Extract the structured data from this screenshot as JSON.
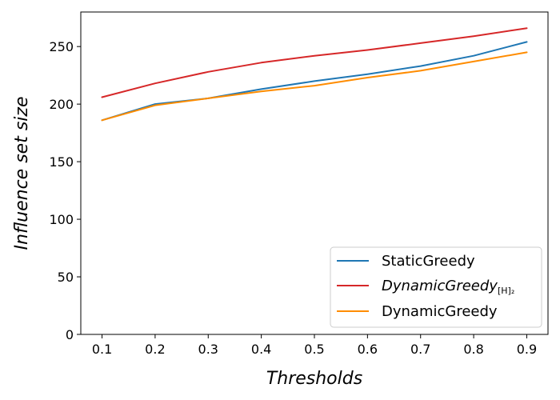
{
  "chart_data": {
    "type": "line",
    "title": "",
    "xlabel": "Thresholds",
    "ylabel": "Influence set size",
    "x": [
      0.1,
      0.2,
      0.3,
      0.4,
      0.5,
      0.6,
      0.7,
      0.8,
      0.9
    ],
    "x_tick_labels": [
      "0.1",
      "0.2",
      "0.3",
      "0.4",
      "0.5",
      "0.6",
      "0.7",
      "0.8",
      "0.9"
    ],
    "y_ticks": [
      0,
      50,
      100,
      150,
      200,
      250
    ],
    "y_tick_labels": [
      "0",
      "50",
      "100",
      "150",
      "200",
      "250"
    ],
    "xlim": [
      0.06,
      0.94
    ],
    "ylim": [
      0,
      280
    ],
    "grid": false,
    "legend_position": "lower-right",
    "series": [
      {
        "name": "StaticGreedy",
        "color": "#1f77b4",
        "values": [
          186,
          200,
          205,
          213,
          220,
          226,
          233,
          242,
          254
        ]
      },
      {
        "name": "DynamicGreedy",
        "name_subscript": "[H]₂",
        "italic": true,
        "color": "#d62728",
        "values": [
          206,
          218,
          228,
          236,
          242,
          247,
          253,
          259,
          266
        ]
      },
      {
        "name": "DynamicGreedy",
        "color": "#ff8c00",
        "values": [
          186,
          199,
          205,
          211,
          216,
          223,
          229,
          237,
          245
        ]
      }
    ]
  }
}
